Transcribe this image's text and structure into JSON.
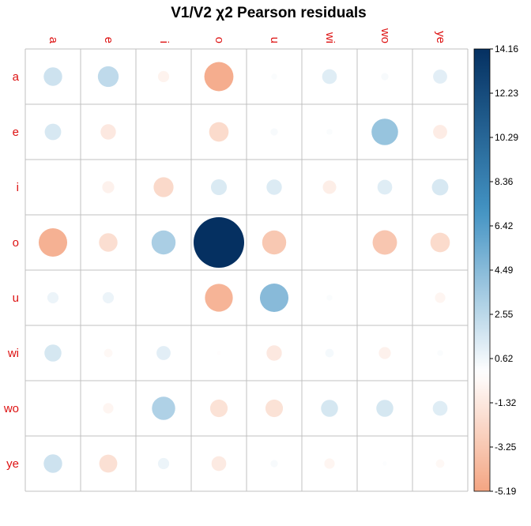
{
  "chart_data": {
    "type": "heatmap",
    "title": "V1/V2 χ2 Pearson residuals",
    "columns": [
      "a",
      "e",
      "i",
      "o",
      "u",
      "wi",
      "wo",
      "ye"
    ],
    "rows": [
      "a",
      "e",
      "i",
      "o",
      "u",
      "wi",
      "wo",
      "ye"
    ],
    "values": [
      [
        1.9,
        2.4,
        -0.7,
        -4.7,
        0.2,
        1.2,
        0.3,
        1.1
      ],
      [
        1.5,
        -1.3,
        0.0,
        -2.1,
        0.3,
        0.2,
        3.9,
        -1.1
      ],
      [
        0.0,
        -0.8,
        -2.2,
        1.4,
        1.3,
        -1.0,
        1.2,
        1.5
      ],
      [
        -4.5,
        -1.9,
        3.2,
        14.16,
        -3.2,
        0.0,
        -3.3,
        -2.1
      ],
      [
        0.7,
        0.7,
        0.0,
        -4.3,
        4.5,
        0.2,
        0.0,
        -0.6
      ],
      [
        1.6,
        -0.4,
        1.1,
        -0.1,
        -1.3,
        0.4,
        -0.8,
        0.2
      ],
      [
        0.0,
        -0.6,
        3.0,
        -1.7,
        -1.7,
        1.6,
        1.6,
        1.2
      ],
      [
        1.9,
        -1.8,
        0.7,
        -1.2,
        0.3,
        -0.6,
        0.1,
        -0.4
      ]
    ],
    "colorbar": {
      "range": [
        -5.19,
        14.16
      ],
      "ticks": [
        "14.16",
        "12.23",
        "10.29",
        "8.36",
        "6.42",
        "4.49",
        "2.55",
        "0.62",
        "-1.32",
        "-3.25",
        "-5.19"
      ]
    },
    "grid": true,
    "legend": "right",
    "colors": {
      "label": "#dd1111",
      "grid": "#c0c0c0",
      "neg_end": "#f4a582",
      "neutral": "#ffffff",
      "pos_mid": "#4393c3",
      "pos_end": "#053061"
    }
  }
}
